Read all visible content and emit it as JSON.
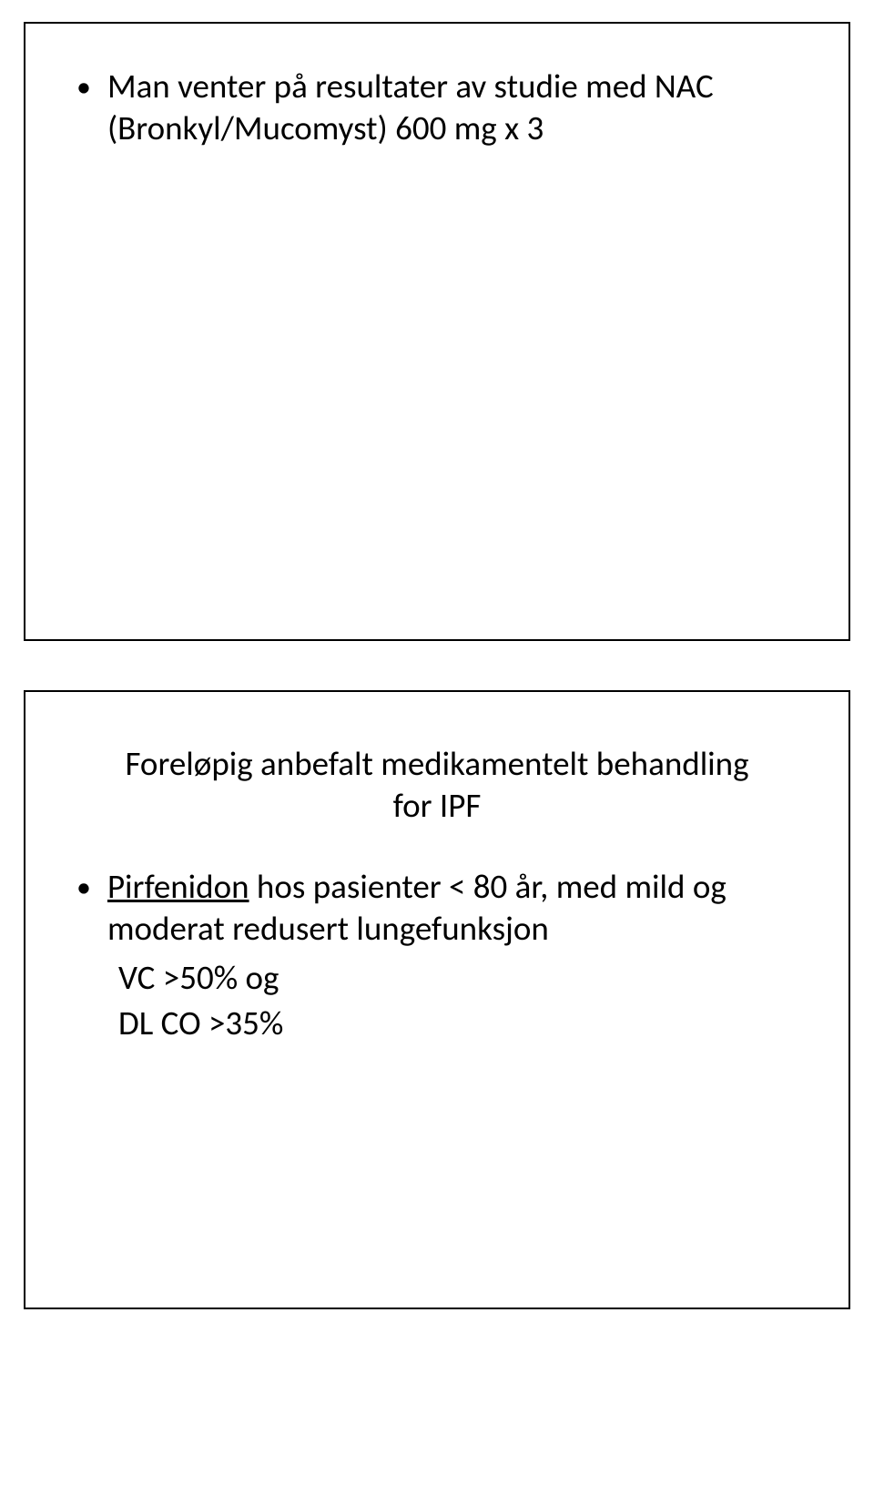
{
  "slide1": {
    "bullet1_line1": "Man venter på resultater av studie med NAC",
    "bullet1_line2": "(Bronkyl/Mucomyst) 600 mg x 3"
  },
  "slide2": {
    "heading_line1": "Foreløpig anbefalt medikamentelt behandling",
    "heading_line2": "for IPF",
    "bullet1_underline": "Pirfenidon",
    "bullet1_rest": " hos pasienter < 80 år, med mild og",
    "bullet1_line2": "moderat redusert lungefunksjon",
    "sub1": "VC >50% og",
    "sub2": "DL CO >35%"
  },
  "colors": {
    "border": "#000000",
    "text": "#000000",
    "background": "#ffffff"
  }
}
